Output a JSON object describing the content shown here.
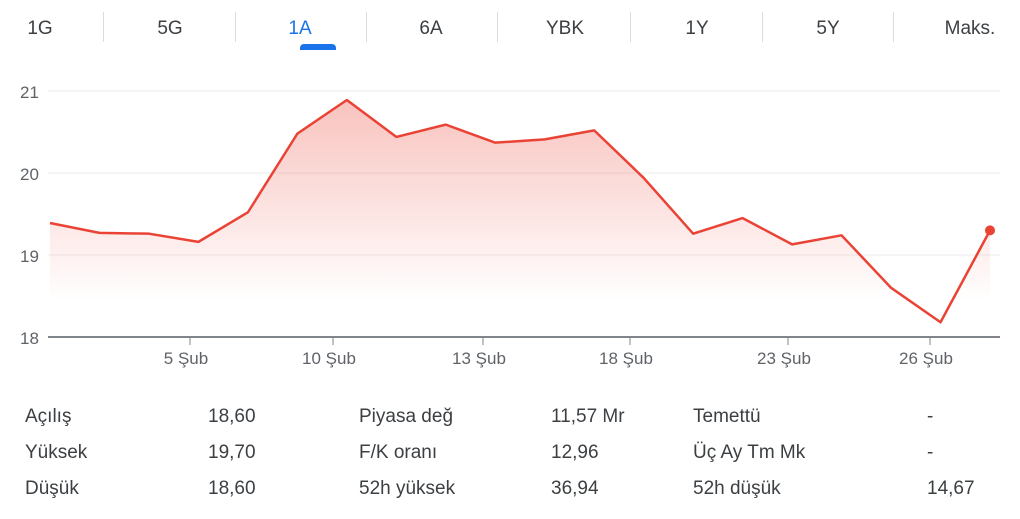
{
  "tabs": [
    {
      "label": "1G"
    },
    {
      "label": "5G"
    },
    {
      "label": "1A",
      "active": true
    },
    {
      "label": "6A"
    },
    {
      "label": "YBK"
    },
    {
      "label": "1Y"
    },
    {
      "label": "5Y"
    },
    {
      "label": "Maks."
    }
  ],
  "chart_data": {
    "type": "area",
    "line_color": "#ea4335",
    "accent": "#1a73e8",
    "y_ticks": [
      "21",
      "20",
      "19",
      "18"
    ],
    "ylim": [
      18,
      21
    ],
    "grid": true,
    "x_ticks": [
      "5 Şub",
      "10 Şub",
      "13 Şub",
      "18 Şub",
      "23 Şub",
      "26 Şub"
    ],
    "values": [
      19.39,
      19.27,
      19.26,
      19.16,
      19.52,
      20.48,
      20.89,
      20.44,
      20.59,
      20.37,
      20.41,
      20.52,
      19.94,
      19.26,
      19.45,
      19.13,
      19.24,
      18.6,
      18.18,
      19.3
    ]
  },
  "stats": [
    {
      "label": "Açılış",
      "value": "18,60"
    },
    {
      "label": "Yüksek",
      "value": "19,70"
    },
    {
      "label": "Düşük",
      "value": "18,60"
    },
    {
      "label": "Piyasa değ",
      "value": "11,57 Mr"
    },
    {
      "label": "F/K oranı",
      "value": "12,96"
    },
    {
      "label": "52h yüksek",
      "value": "36,94"
    },
    {
      "label": "Temettü",
      "value": "-"
    },
    {
      "label": "Üç Ay Tm Mk",
      "value": "-"
    },
    {
      "label": "52h düşük",
      "value": "14,67"
    }
  ]
}
